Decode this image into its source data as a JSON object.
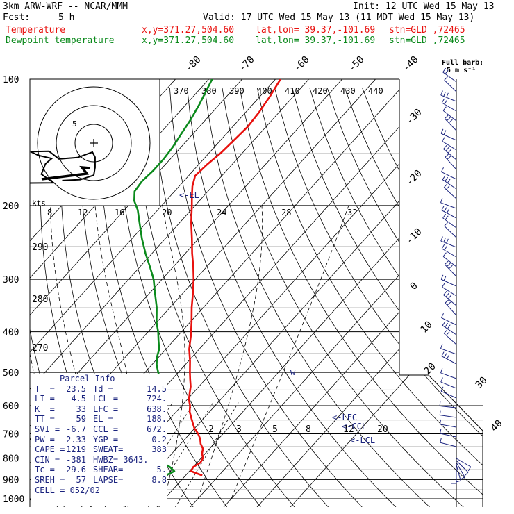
{
  "header": {
    "model": "3km ARW-WRF -- NCAR/MMM",
    "init": "Init: 12 UTC Wed 15 May 13",
    "fcst_label": "Fcst:",
    "fcst_value": "5 h",
    "valid": "Valid: 17 UTC Wed 15 May 13 (11 MDT Wed 15 May 13)",
    "temp_label": "Temperature",
    "dew_label": "Dewpoint temperature",
    "xy": "x,y=371.27,504.60",
    "latlon": "lat,lon= 39.37,-101.69",
    "stn": "stn=GLD ,72465"
  },
  "colors": {
    "temperature": "#e8110e",
    "dewpoint": "#0b8a1c",
    "annotation": "#1a237e",
    "grid": "#000000"
  },
  "barb_legend": {
    "line1": "Full barb:",
    "line2": "5 m s⁻¹"
  },
  "chart_data": [
    {
      "type": "line",
      "subtype": "skew-T log-P",
      "pressure_ticks": [
        "100",
        "200",
        "300",
        "400",
        "500",
        "600",
        "700",
        "800",
        "900",
        "1000"
      ],
      "isotherm_labels": [
        "-80",
        "-70",
        "-60",
        "-50",
        "-40",
        "-30",
        "-20",
        "-10",
        "0",
        "10",
        "20",
        "30",
        "40"
      ],
      "mixing_ratio_labels": [
        "2",
        "3",
        "5",
        "8",
        "12",
        "20"
      ],
      "theta_labels": [
        "290",
        "280",
        "270"
      ],
      "ylim": [
        1000,
        100
      ],
      "y_scale": "log",
      "series": [
        {
          "name": "Temperature",
          "points": [
            [
              880,
              25.0
            ],
            [
              860,
              20.5
            ],
            [
              840,
              20.0
            ],
            [
              820,
              21.0
            ],
            [
              800,
              20.5
            ],
            [
              780,
              19.0
            ],
            [
              760,
              18.0
            ],
            [
              740,
              16.0
            ],
            [
              720,
              14.5
            ],
            [
              700,
              12.5
            ],
            [
              680,
              10.0
            ],
            [
              660,
              8.0
            ],
            [
              640,
              6.0
            ],
            [
              620,
              4.0
            ],
            [
              600,
              2.5
            ],
            [
              580,
              0.5
            ],
            [
              560,
              -1.0
            ],
            [
              540,
              -2.5
            ],
            [
              520,
              -4.5
            ],
            [
              500,
              -6.5
            ],
            [
              470,
              -9.5
            ],
            [
              440,
              -13.0
            ],
            [
              410,
              -16.0
            ],
            [
              380,
              -19.5
            ],
            [
              350,
              -23.5
            ],
            [
              320,
              -27.5
            ],
            [
              300,
              -30.5
            ],
            [
              280,
              -34.0
            ],
            [
              260,
              -38.0
            ],
            [
              240,
              -42.0
            ],
            [
              220,
              -46.5
            ],
            [
              200,
              -51.0
            ],
            [
              190,
              -53.5
            ],
            [
              180,
              -56.0
            ],
            [
              170,
              -58.0
            ],
            [
              160,
              -57.5
            ],
            [
              150,
              -56.5
            ],
            [
              140,
              -56.0
            ],
            [
              130,
              -55.5
            ],
            [
              120,
              -56.0
            ],
            [
              110,
              -57.0
            ],
            [
              100,
              -58.5
            ]
          ]
        },
        {
          "name": "Dewpoint temperature",
          "points": [
            [
              880,
              14.0
            ],
            [
              860,
              15.5
            ],
            [
              840,
              13.0
            ],
            [
              820,
              9.5
            ],
            [
              800,
              1.0
            ],
            [
              780,
              0.5
            ],
            [
              760,
              -0.5
            ],
            [
              740,
              -2.0
            ],
            [
              720,
              -4.0
            ],
            [
              700,
              -5.5
            ],
            [
              680,
              -6.5
            ],
            [
              660,
              -6.7
            ],
            [
              640,
              -6.9
            ],
            [
              620,
              -8.0
            ],
            [
              600,
              -9.5
            ],
            [
              580,
              -11.0
            ],
            [
              560,
              -10.5
            ],
            [
              540,
              -11.0
            ],
            [
              520,
              -13.5
            ],
            [
              500,
              -16.0
            ],
            [
              480,
              -18.5
            ],
            [
              460,
              -20.5
            ],
            [
              440,
              -22.0
            ],
            [
              420,
              -24.5
            ],
            [
              400,
              -27.0
            ],
            [
              380,
              -30.0
            ],
            [
              350,
              -34.0
            ],
            [
              320,
              -39.0
            ],
            [
              300,
              -42.5
            ],
            [
              280,
              -47.0
            ],
            [
              260,
              -52.0
            ],
            [
              240,
              -57.0
            ],
            [
              220,
              -62.0
            ],
            [
              205,
              -66.0
            ],
            [
              195,
              -69.5
            ],
            [
              185,
              -72.0
            ],
            [
              175,
              -72.5
            ],
            [
              165,
              -72.0
            ],
            [
              155,
              -72.0
            ],
            [
              145,
              -72.5
            ],
            [
              135,
              -73.5
            ],
            [
              125,
              -74.5
            ],
            [
              115,
              -76.0
            ],
            [
              100,
              -79.0
            ]
          ]
        }
      ],
      "annotations": [
        "<-EL",
        "<-LFC",
        "<-CCL",
        "<-LCL"
      ]
    },
    {
      "type": "line",
      "subtype": "hodograph",
      "ring_label": "5",
      "speed_label": "kts",
      "points": [
        [
          -22,
          8.9
        ],
        [
          -8.9,
          8.8
        ],
        [
          -11.6,
          6.9
        ],
        [
          -10.7,
          4.6
        ],
        [
          -9.3,
          3.4
        ],
        [
          -12.3,
          2.7
        ],
        [
          -14.0,
          1.9
        ],
        [
          -9.9,
          1.8
        ],
        [
          -7.7,
          3.5
        ],
        [
          -3.6,
          3.2
        ],
        [
          -0.3,
          2.0
        ],
        [
          0.3,
          3.1
        ],
        [
          0.3,
          5.4
        ],
        [
          0.0,
          7.1
        ],
        [
          -3.0,
          8.1
        ],
        [
          -7.0,
          8.3
        ]
      ],
      "mean_marker": "+",
      "theta_e_axis_ticks": [
        "370",
        "380",
        "390",
        "400",
        "410",
        "420",
        "430",
        "440"
      ],
      "temp_scale_ticks": [
        "8",
        "12",
        "16",
        "20",
        "24",
        "28",
        "32"
      ]
    }
  ],
  "parcel_info": {
    "title": "Parcel Info",
    "rows": [
      [
        "T  =",
        "23.5",
        "Td =",
        "14.5"
      ],
      [
        "LI =",
        "-4.5",
        "LCL =",
        "724."
      ],
      [
        "K  =",
        "33",
        "LFC =",
        "638."
      ],
      [
        "TT =",
        "59",
        "EL =",
        "188."
      ],
      [
        "SVI =",
        "-6.7",
        "CCL =",
        "672."
      ],
      [
        "PW =",
        "2.33",
        "YGP =",
        "0.2"
      ],
      [
        "CAPE =",
        "1219",
        "SWEAT=",
        "383"
      ],
      [
        "CIN =",
        "-381",
        "HWBZ= 3643.",
        ""
      ],
      [
        "Tc =",
        "29.6",
        "SHEAR=",
        "5."
      ],
      [
        "SREH =",
        "57",
        "LAPSE=",
        "8.8"
      ],
      [
        "CELL = 052/02",
        "",
        "",
        ""
      ]
    ]
  }
}
